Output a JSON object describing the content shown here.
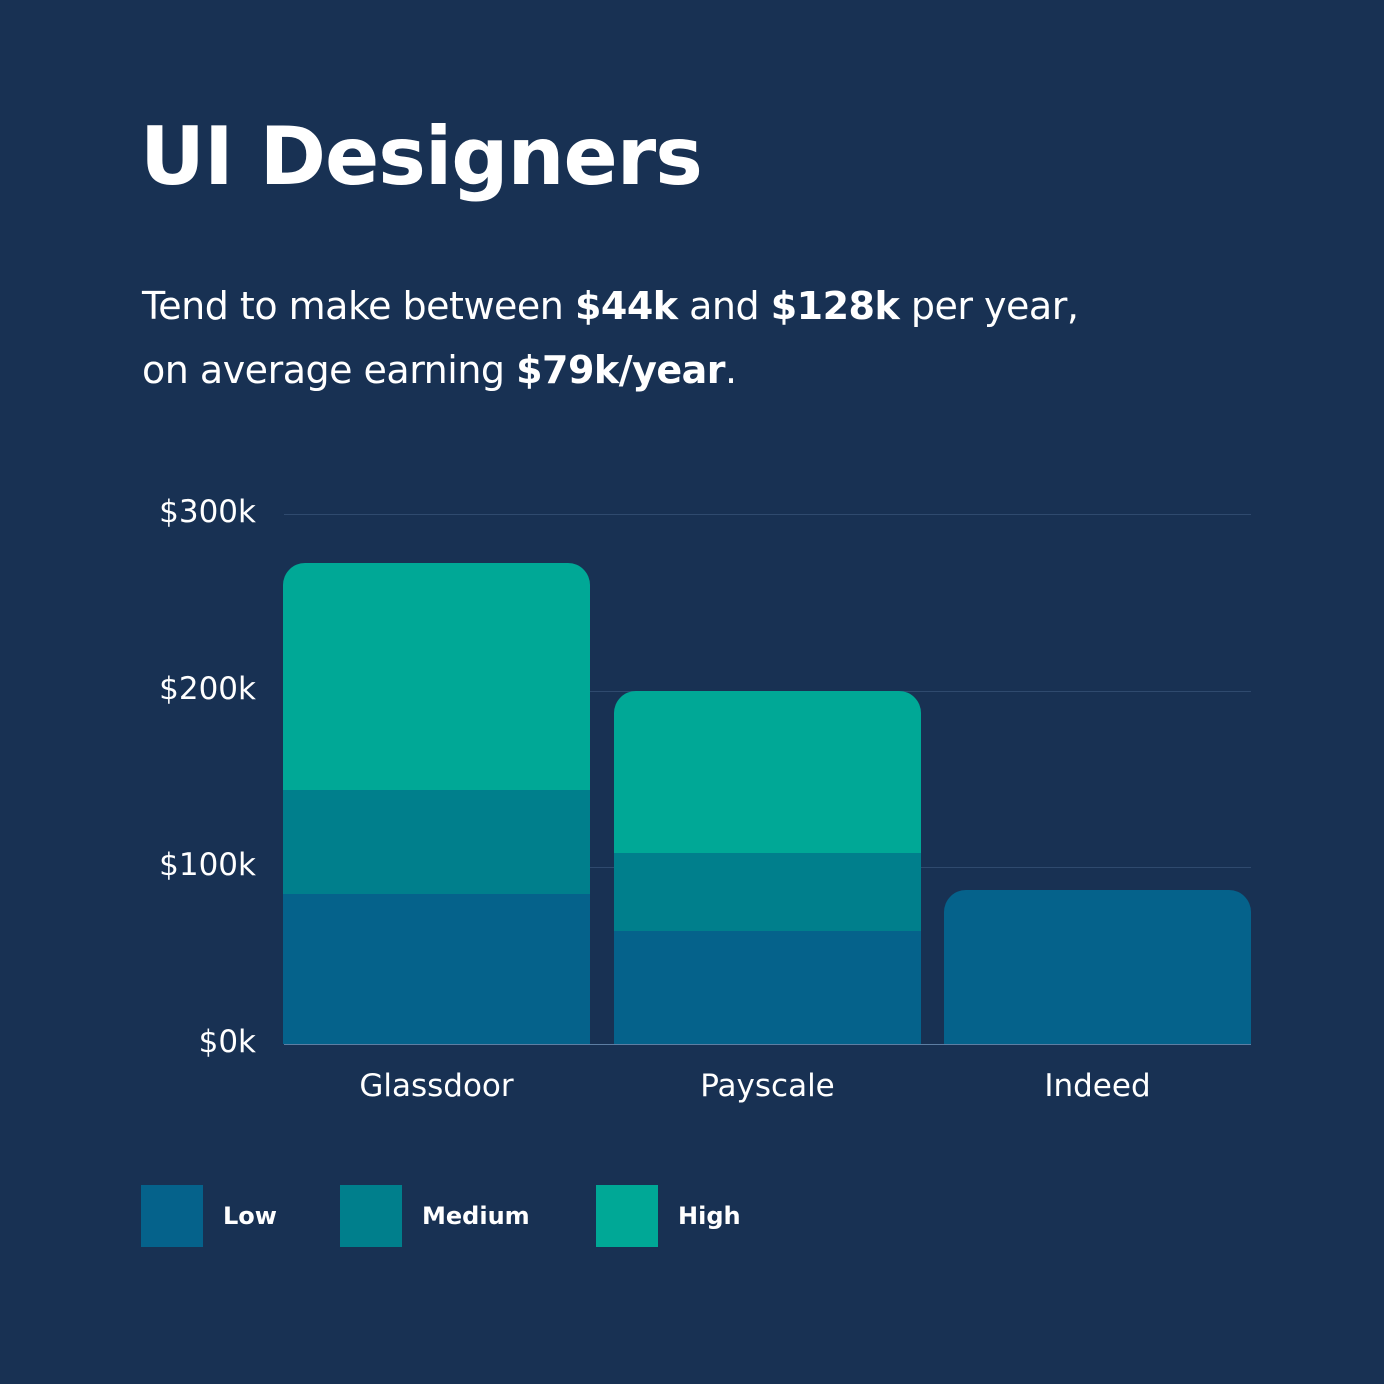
{
  "header": {
    "title": "UI Designers",
    "subtitle": {
      "part1": "Tend to make between ",
      "low": "$44k",
      "part2": " and ",
      "high": "$128k",
      "part3": " per year,",
      "part4": "on average earning ",
      "avg": "$79k/year",
      "part5": "."
    }
  },
  "colors": {
    "background": "#183153",
    "low": "#05628b",
    "medium": "#007f8c",
    "high": "#00a896",
    "text": "#ffffff"
  },
  "chart_data": {
    "type": "bar",
    "stacked": true,
    "title": "UI Designers",
    "xlabel": "",
    "ylabel": "",
    "ylim": [
      0,
      300
    ],
    "yticks": [
      "$0k",
      "$100k",
      "$200k",
      "$300k"
    ],
    "grid": true,
    "legend_position": "bottom-left",
    "categories": [
      "Glassdoor",
      "Payscale",
      "Indeed"
    ],
    "series": [
      {
        "name": "Low",
        "color": "#05628b",
        "values": [
          85,
          64,
          87
        ]
      },
      {
        "name": "Medium",
        "color": "#007f8c",
        "values": [
          59,
          44,
          0
        ]
      },
      {
        "name": "High",
        "color": "#00a896",
        "values": [
          128,
          92,
          0
        ]
      }
    ],
    "totals_k": [
      272,
      200,
      87
    ]
  },
  "legend": {
    "items": [
      {
        "label": "Low"
      },
      {
        "label": "Medium"
      },
      {
        "label": "High"
      }
    ]
  }
}
